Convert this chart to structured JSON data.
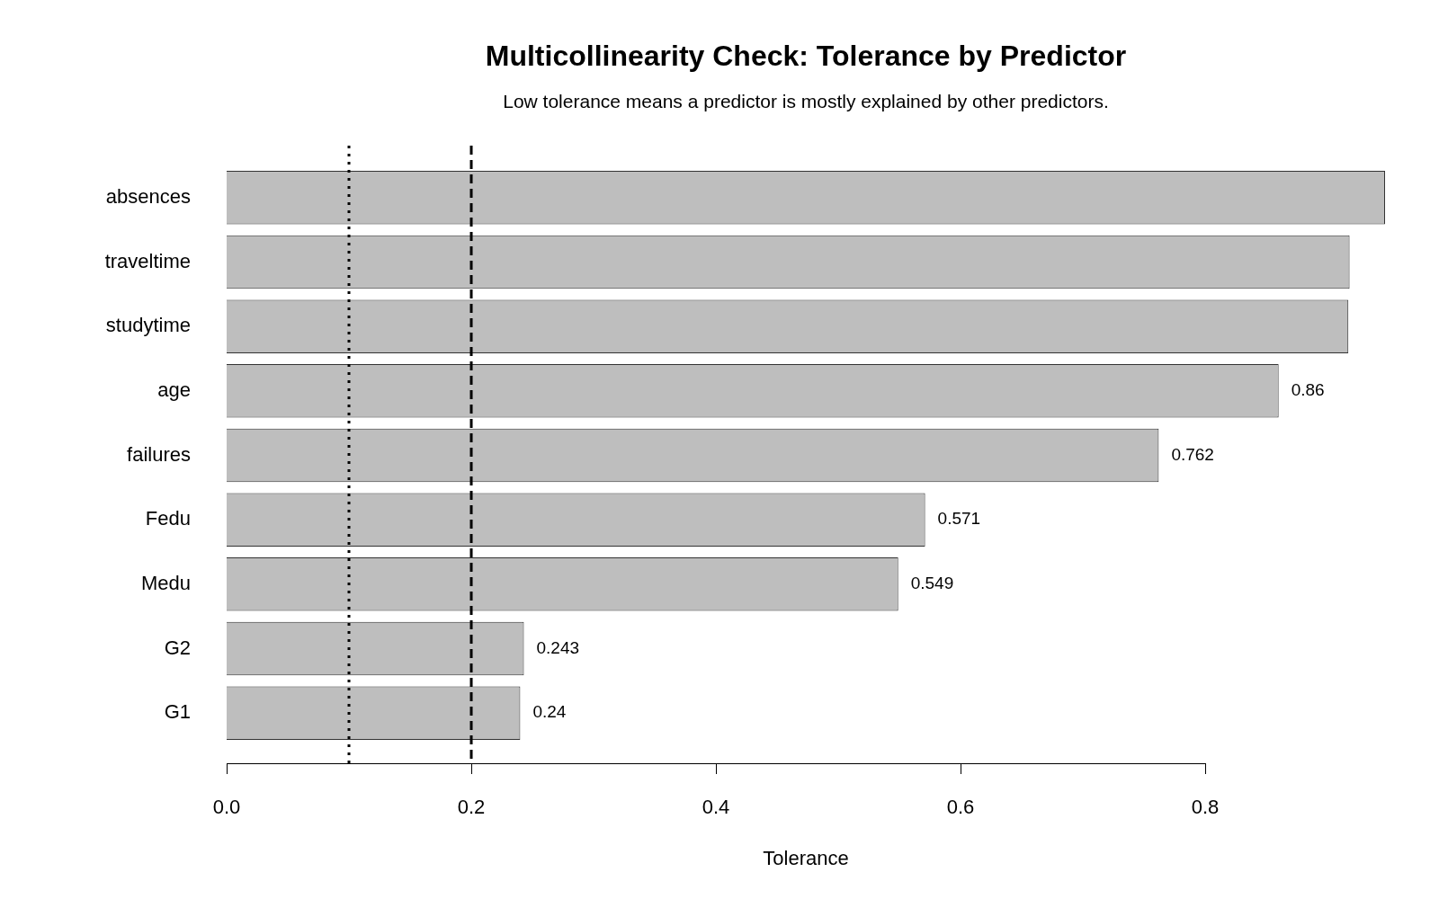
{
  "chart_data": {
    "type": "bar",
    "orientation": "horizontal",
    "title": "Multicollinearity Check: Tolerance by Predictor",
    "subtitle": "Low tolerance means a predictor is mostly explained by other predictors.",
    "xlabel": "Tolerance",
    "categories": [
      "absences",
      "traveltime",
      "studytime",
      "age",
      "failures",
      "Fedu",
      "Medu",
      "G2",
      "G1"
    ],
    "values": [
      0.947,
      0.918,
      0.917,
      0.86,
      0.762,
      0.571,
      0.549,
      0.243,
      0.24
    ],
    "value_labels": [
      null,
      null,
      null,
      "0.86",
      "0.762",
      "0.571",
      "0.549",
      "0.243",
      "0.24"
    ],
    "color": "#bebebe",
    "xlim": [
      0,
      0.947
    ],
    "xticks": [
      {
        "value": 0,
        "label": "0.0"
      },
      0.2,
      0.4,
      0.6,
      0.8
    ],
    "grid": false,
    "ref_lines": [
      {
        "axis": "x",
        "value": 0.1,
        "line_style": "dotted",
        "color": "#000000"
      },
      {
        "axis": "x",
        "value": 0.2,
        "line_style": "dashed",
        "color": "#000000"
      }
    ]
  }
}
